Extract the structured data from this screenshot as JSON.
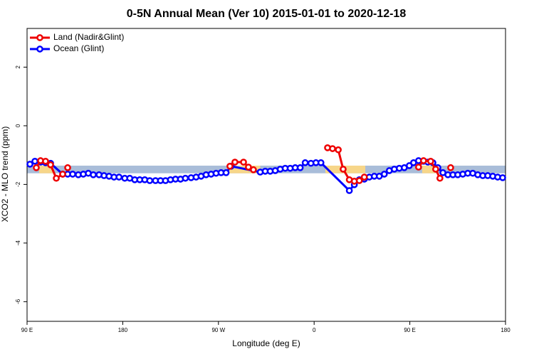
{
  "chart_data": {
    "type": "line",
    "title": "0-5N Annual Mean (Ver 10)   2015-01-01 to 2020-12-18",
    "x_label": "Longitude (deg E)",
    "y_label": "XCO2 - MLO trend (ppm)",
    "xlim": [
      90,
      540
    ],
    "xticks": [
      {
        "value": 90,
        "label": "90 E"
      },
      180,
      {
        "value": 270,
        "label": "90 W"
      },
      {
        "value": 360,
        "label": "0"
      },
      {
        "value": 450,
        "label": "90 E"
      },
      {
        "value": 540,
        "label": "180"
      }
    ],
    "ylim": [
      -6.67,
      3.32
    ],
    "yticks": [
      -6,
      -4,
      -2,
      0,
      2
    ],
    "band_y": [
      -1.62,
      -1.36
    ],
    "bands": [
      {
        "color": "#a9bdd9",
        "x": [
          90,
          540
        ]
      },
      {
        "color": "#f7d689",
        "x": [
          101.4,
          114.8
        ]
      },
      {
        "color": "#f7d689",
        "x": [
          280.2,
          309.3
        ]
      },
      {
        "color": "#f7d689",
        "x": [
          370.6,
          408.1
        ]
      },
      {
        "color": "#f7d689",
        "x": [
          461.6,
          474.4
        ]
      }
    ],
    "legend": "top-left",
    "series": [
      {
        "name": "Ocean (Glint)",
        "color": "#0000ff",
        "x": [
          92.7,
          97.4,
          102.7,
          107.4,
          112.1,
          123.5,
          128.2,
          132.9,
          138.2,
          142.9,
          147.6,
          152.3,
          157.7,
          162.4,
          167.1,
          171.8,
          176.5,
          181.9,
          186.6,
          191.3,
          196.0,
          200.7,
          205.4,
          210.8,
          215.5,
          220.2,
          224.9,
          229.6,
          234.3,
          238.9,
          244.3,
          249.0,
          253.7,
          258.4,
          263.1,
          267.8,
          272.5,
          277.2,
          281.9,
          309.3,
          314.0,
          318.7,
          323.4,
          328.1,
          332.8,
          337.5,
          342.2,
          346.9,
          351.6,
          357.0,
          361.7,
          366.4,
          393.1,
          397.8,
          402.5,
          407.2,
          411.9,
          416.6,
          421.3,
          426.0,
          430.7,
          435.4,
          440.1,
          444.8,
          449.5,
          453.5,
          458.2,
          462.9,
          467.0,
          471.7,
          476.4,
          481.1,
          485.8,
          490.5,
          495.1,
          499.8,
          504.5,
          509.2,
          513.9,
          518.6,
          523.3,
          528.0,
          532.6,
          537.3
        ],
        "values": [
          -1.31,
          -1.21,
          -1.24,
          -1.26,
          -1.28,
          -1.65,
          -1.65,
          -1.65,
          -1.67,
          -1.65,
          -1.62,
          -1.67,
          -1.67,
          -1.7,
          -1.72,
          -1.75,
          -1.75,
          -1.79,
          -1.79,
          -1.84,
          -1.84,
          -1.84,
          -1.87,
          -1.87,
          -1.87,
          -1.87,
          -1.84,
          -1.82,
          -1.82,
          -1.79,
          -1.77,
          -1.75,
          -1.72,
          -1.67,
          -1.65,
          -1.62,
          -1.6,
          -1.6,
          -1.38,
          -1.58,
          -1.55,
          -1.55,
          -1.53,
          -1.48,
          -1.45,
          -1.45,
          -1.43,
          -1.43,
          -1.26,
          -1.28,
          -1.26,
          -1.26,
          -2.21,
          -2.01,
          -1.84,
          -1.82,
          -1.75,
          -1.72,
          -1.72,
          -1.65,
          -1.53,
          -1.48,
          -1.45,
          -1.43,
          -1.36,
          -1.26,
          -1.19,
          -1.21,
          -1.24,
          -1.26,
          -1.43,
          -1.6,
          -1.67,
          -1.67,
          -1.67,
          -1.65,
          -1.62,
          -1.62,
          -1.67,
          -1.7,
          -1.7,
          -1.72,
          -1.75,
          -1.77
        ]
      },
      {
        "name": "Land (Nadir&Glint)",
        "color": "#ee0000",
        "x": [
          98.7,
          102.7,
          107.4,
          112.1,
          117.5,
          123.5,
          null,
          128.2,
          null,
          280.8,
          285.5,
          293.6,
          298.2,
          302.9,
          null,
          372.6,
          377.3,
          382.7,
          387.3,
          393.1,
          397.8,
          402.5,
          407.2,
          null,
          458.2,
          462.9,
          469.6,
          474.3,
          478.3,
          null,
          488.4
        ],
        "values": [
          -1.43,
          -1.19,
          -1.21,
          -1.33,
          -1.79,
          -1.65,
          null,
          -1.43,
          null,
          -1.38,
          -1.24,
          -1.24,
          -1.41,
          -1.5,
          null,
          -0.75,
          -0.78,
          -0.82,
          -1.48,
          -1.84,
          -1.89,
          -1.87,
          -1.75,
          null,
          -1.41,
          -1.19,
          -1.21,
          -1.48,
          -1.79,
          null,
          -1.43
        ]
      }
    ]
  }
}
